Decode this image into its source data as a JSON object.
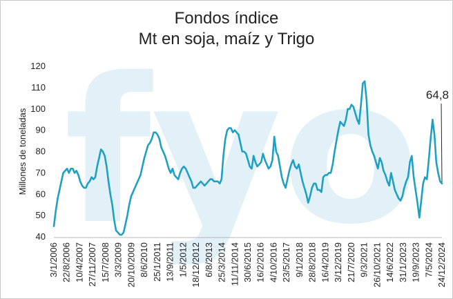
{
  "chart_data": {
    "type": "line",
    "title_line1": "Fondos índice",
    "title_line2": "Mt en soja, maíz y Trigo",
    "ylabel": "Millones de toneladas",
    "ylim": [
      40,
      120
    ],
    "yticks": [
      40,
      50,
      60,
      70,
      80,
      90,
      100,
      110,
      120
    ],
    "xticks": [
      "3/1/2006",
      "22/8/2006",
      "10/4/2007",
      "27/11/2007",
      "15/7/2008",
      "3/3/2009",
      "20/10/2009",
      "8/6/2010",
      "25/1/2011",
      "13/9/2011",
      "1/5/2012",
      "18/12/2012",
      "6/8/2013",
      "25/3/2014",
      "11/11/2014",
      "30/6/2015",
      "16/2/2016",
      "4/10/2016",
      "23/5/2017",
      "9/1/2018",
      "28/8/2018",
      "16/4/2019",
      "3/12/2019",
      "21/7/2020",
      "9/3/2021",
      "26/10/2021",
      "14/6/2022",
      "31/1/2023",
      "19/9/2023",
      "7/5/2024",
      "24/12/2024"
    ],
    "annotation": "64,8",
    "line_color": "#1e9fc4",
    "watermark": "fyo",
    "watermark_color": "#e2f1f7",
    "series": [
      {
        "values": [
          45,
          52,
          58,
          62,
          66,
          70,
          71,
          72,
          70,
          72,
          72,
          70,
          71,
          69,
          66,
          64,
          63,
          63,
          65,
          66,
          68,
          67,
          68,
          73,
          77,
          81,
          80,
          78,
          73,
          66,
          60,
          55,
          48,
          43,
          42,
          41,
          41,
          42,
          46,
          50,
          55,
          59,
          61,
          63,
          65,
          67,
          69,
          73,
          77,
          80,
          83,
          84,
          86,
          89,
          89,
          88,
          86,
          82,
          80,
          78,
          75,
          72,
          70,
          72,
          69,
          68,
          67,
          70,
          72,
          73,
          72,
          70,
          68,
          66,
          63,
          63,
          64,
          65,
          66,
          65,
          64,
          65,
          66,
          67,
          67,
          66,
          66,
          66,
          65,
          67,
          78,
          86,
          90,
          91,
          91,
          89,
          90,
          89,
          88,
          84,
          80,
          80,
          79,
          76,
          73,
          72,
          78,
          75,
          73,
          74,
          75,
          79,
          76,
          74,
          72,
          73,
          76,
          87,
          80,
          78,
          73,
          68,
          65,
          63,
          67,
          71,
          74,
          76,
          73,
          72,
          74,
          70,
          66,
          63,
          60,
          56,
          59,
          63,
          65,
          65,
          62,
          62,
          61,
          68,
          69,
          69,
          70,
          70,
          74,
          80,
          85,
          90,
          94,
          93,
          92,
          95,
          100,
          100,
          102,
          101,
          98,
          95,
          93,
          102,
          112,
          113,
          104,
          88,
          83,
          80,
          78,
          75,
          72,
          77,
          75,
          71,
          69,
          66,
          64,
          70,
          66,
          62,
          60,
          58,
          57,
          59,
          63,
          66,
          68,
          75,
          78,
          68,
          62,
          56,
          49,
          57,
          65,
          68,
          67,
          76,
          86,
          95,
          88,
          75,
          70,
          66,
          65
        ]
      }
    ]
  }
}
